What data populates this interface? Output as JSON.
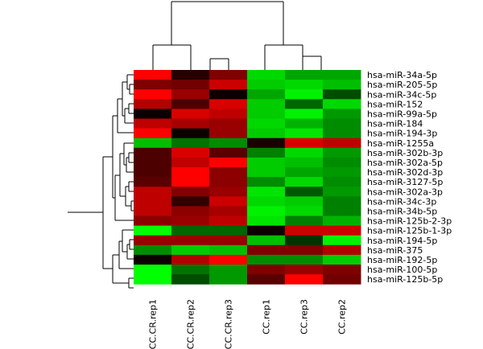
{
  "chart_data": {
    "type": "heatmap",
    "title": "",
    "xlabel": "",
    "ylabel": "",
    "legend": "none",
    "grid": false,
    "color_scale": {
      "low": "#00ff00",
      "mid": "#000000",
      "high": "#ff0000",
      "range": [
        -1,
        1
      ]
    },
    "columns": [
      "CC.CR.rep1",
      "CC.CR.rep2",
      "CC.CR.rep3",
      "CC.rep1",
      "CC.rep3",
      "CC.rep2"
    ],
    "rows": [
      "hsa-miR-34a-5p",
      "hsa-miR-205-5p",
      "hsa-miR-34c-5p",
      "hsa-miR-152",
      "hsa-miR-99a-5p",
      "hsa-miR-184",
      "hsa-miR-194-3p",
      "hsa-miR-1255a",
      "hsa-miR-302b-3p",
      "hsa-miR-302a-5p",
      "hsa-miR-302d-3p",
      "hsa-miR-3127-5p",
      "hsa-miR-302a-3p",
      "hsa-miR-34c-3p",
      "hsa-miR-34b-5p",
      "hsa-miR-125b-2-3p",
      "hsa-miR-125b-1-3p",
      "hsa-miR-194-5p",
      "hsa-miR-375",
      "hsa-miR-192-5p",
      "hsa-miR-100-5p",
      "hsa-miR-125b-5p"
    ],
    "values": [
      [
        1.0,
        0.15,
        0.5,
        -0.85,
        -0.65,
        -0.65
      ],
      [
        0.5,
        0.45,
        0.8,
        -0.8,
        -0.85,
        -0.75
      ],
      [
        1.0,
        0.6,
        0.05,
        -0.65,
        -0.95,
        -0.3
      ],
      [
        0.7,
        0.3,
        0.85,
        -0.8,
        -0.4,
        -0.85
      ],
      [
        0.05,
        0.85,
        0.75,
        -0.8,
        -0.95,
        -0.6
      ],
      [
        0.75,
        0.65,
        0.6,
        -0.85,
        -0.7,
        -0.55
      ],
      [
        1.0,
        0.05,
        0.6,
        -0.8,
        -0.9,
        -0.55
      ],
      [
        -0.75,
        -0.45,
        -0.55,
        0.1,
        0.85,
        0.75
      ],
      [
        0.3,
        0.85,
        0.35,
        -0.5,
        -0.85,
        -0.6
      ],
      [
        0.3,
        0.75,
        1.0,
        -0.8,
        -0.75,
        -0.55
      ],
      [
        0.3,
        1.0,
        0.55,
        -0.8,
        -0.65,
        -0.6
      ],
      [
        0.35,
        1.0,
        0.55,
        -0.55,
        -0.85,
        -0.55
      ],
      [
        0.75,
        0.5,
        0.6,
        -0.9,
        -0.35,
        -0.6
      ],
      [
        0.75,
        0.2,
        0.8,
        -0.85,
        -0.8,
        -0.5
      ],
      [
        0.75,
        0.55,
        0.65,
        -0.95,
        -0.85,
        -0.5
      ],
      [
        0.55,
        0.6,
        0.75,
        -0.9,
        -0.5,
        -0.7
      ],
      [
        -1.0,
        -0.4,
        -0.4,
        0.05,
        0.8,
        0.8
      ],
      [
        0.6,
        0.6,
        0.6,
        -0.75,
        -0.2,
        -0.95
      ],
      [
        -0.55,
        -0.8,
        -0.75,
        0.5,
        0.5,
        0.7
      ],
      [
        0.05,
        0.7,
        1.0,
        -0.55,
        -0.55,
        -0.8
      ],
      [
        -1.0,
        -0.45,
        -0.6,
        0.5,
        0.6,
        0.5
      ],
      [
        -1.0,
        -0.3,
        -0.6,
        0.35,
        1.0,
        0.45
      ]
    ]
  }
}
